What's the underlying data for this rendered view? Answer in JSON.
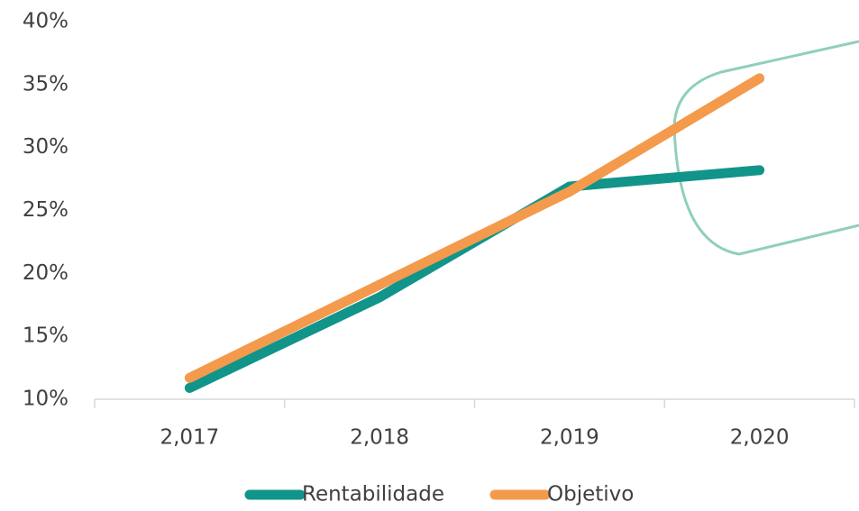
{
  "chart_data": {
    "type": "line",
    "categories": [
      "2,017",
      "2,018",
      "2,019",
      "2,020"
    ],
    "series": [
      {
        "name": "Rentabilidade",
        "color": "#11948a",
        "values": [
          10.9,
          18.1,
          26.9,
          28.2
        ]
      },
      {
        "name": "Objetivo",
        "color": "#f39a4c",
        "values": [
          11.7,
          19.1,
          26.5,
          35.5
        ]
      }
    ],
    "ylim": [
      10,
      40
    ],
    "yticks": [
      {
        "value": 10,
        "label": "10%"
      },
      {
        "value": 15,
        "label": "15%"
      },
      {
        "value": 20,
        "label": "20%"
      },
      {
        "value": 25,
        "label": "25%"
      },
      {
        "value": 30,
        "label": "30%"
      },
      {
        "value": 35,
        "label": "35%"
      },
      {
        "value": 40,
        "label": "40%"
      }
    ],
    "grid": false,
    "legend": "bottom"
  }
}
